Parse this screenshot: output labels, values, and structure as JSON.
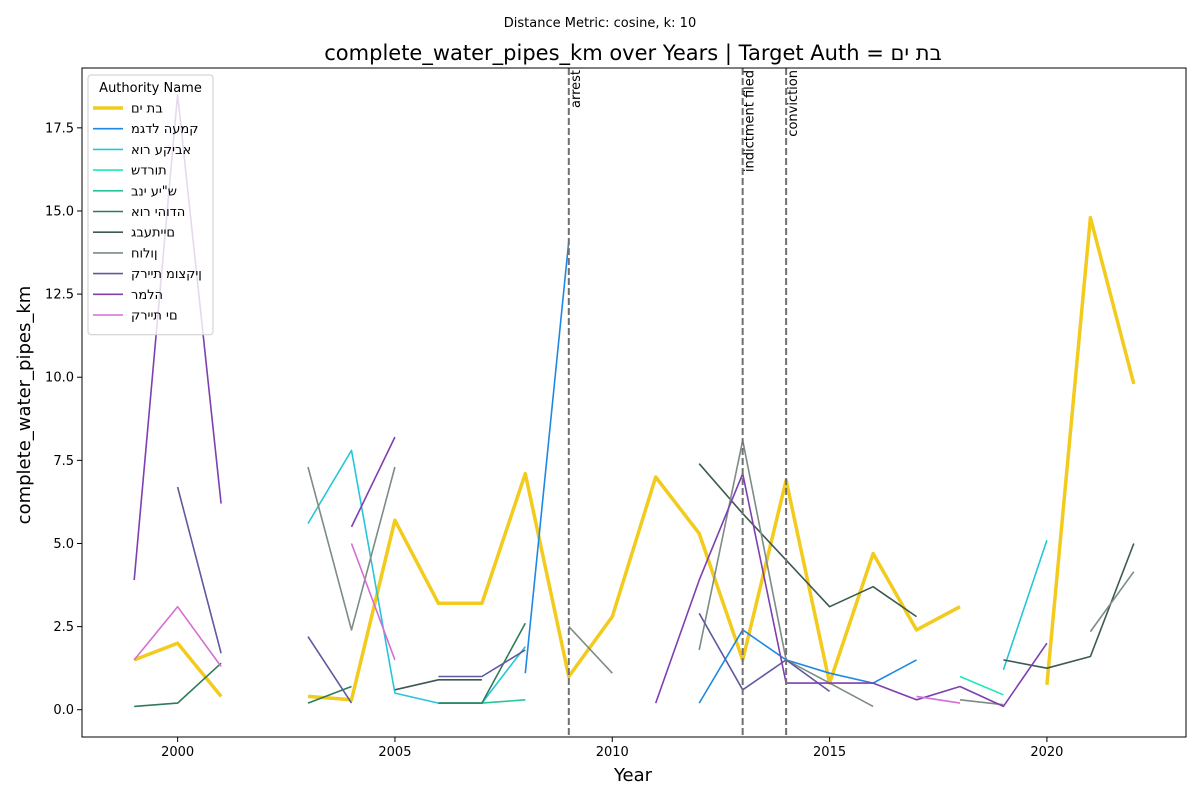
{
  "chart_data": {
    "type": "line",
    "suptitle": "Distance Metric: cosine, k: 10",
    "title": "complete_water_pipes_km over Years | Target Auth = בת ים",
    "xlabel": "Year",
    "ylabel": "complete_water_pipes_km",
    "xlim": [
      1997.8,
      2023.2
    ],
    "ylim": [
      -0.82,
      19.3
    ],
    "x_ticks": [
      2000,
      2005,
      2010,
      2015,
      2020
    ],
    "y_ticks": [
      0.0,
      2.5,
      5.0,
      7.5,
      10.0,
      12.5,
      15.0,
      17.5
    ],
    "y_tick_labels": [
      "0.0",
      "2.5",
      "5.0",
      "7.5",
      "10.0",
      "12.5",
      "15.0",
      "17.5"
    ],
    "grid": false,
    "legend": {
      "title": "Authority Name",
      "placement": "top-left"
    },
    "vlines": [
      {
        "x": 2009,
        "label": "arrest"
      },
      {
        "x": 2013,
        "label": "indictment filed"
      },
      {
        "x": 2014,
        "label": "conviction"
      }
    ],
    "series": [
      {
        "name": "בת ים",
        "color": "#f2cb1d",
        "width": 3.5,
        "points": [
          [
            1999,
            1.5
          ],
          [
            2000,
            2.0
          ],
          [
            2001,
            0.4
          ],
          null,
          [
            2003,
            0.4
          ],
          [
            2004,
            0.3
          ],
          [
            2005,
            5.7
          ],
          [
            2006,
            3.2
          ],
          [
            2007,
            3.2
          ],
          [
            2008,
            7.1
          ],
          [
            2009,
            1.0
          ],
          [
            2010,
            2.8
          ],
          [
            2011,
            7.0
          ],
          [
            2012,
            5.3
          ],
          [
            2013,
            1.5
          ],
          [
            2014,
            6.9
          ],
          [
            2015,
            0.8
          ],
          [
            2016,
            4.7
          ],
          [
            2017,
            2.4
          ],
          [
            2018,
            3.1
          ],
          null,
          [
            2020,
            0.75
          ],
          [
            2021,
            14.8
          ],
          [
            2022,
            9.8
          ]
        ]
      },
      {
        "name": "קמעה לדגמ",
        "color": "#1e88e5",
        "width": 1.6,
        "points": [
          [
            2008,
            1.1
          ],
          [
            2009,
            14.1
          ],
          null,
          [
            2012,
            0.2
          ],
          [
            2013,
            2.4
          ],
          [
            2014,
            1.5
          ],
          [
            2015,
            1.1
          ],
          [
            2016,
            0.8
          ],
          [
            2017,
            1.5
          ]
        ]
      },
      {
        "name": "אביקע רוא",
        "color": "#26c6da",
        "width": 1.6,
        "points": [
          [
            2003,
            5.6
          ],
          [
            2004,
            7.8
          ],
          [
            2005,
            0.5
          ],
          [
            2006,
            0.2
          ],
          [
            2007,
            0.2
          ],
          [
            2008,
            1.9
          ],
          null,
          [
            2019,
            1.2
          ],
          [
            2020,
            5.1
          ]
        ]
      },
      {
        "name": "תורדש",
        "color": "#1de9b6",
        "width": 1.6,
        "points": [
          [
            2018,
            1.0
          ],
          [
            2019,
            0.45
          ]
        ]
      },
      {
        "name": "ש\"יע ינב",
        "color": "#26c69a",
        "width": 1.6,
        "points": [
          [
            2007,
            0.2
          ],
          [
            2008,
            0.3
          ]
        ]
      },
      {
        "name": "הדוהי רוא",
        "color": "#2e7d5a",
        "width": 1.6,
        "points": [
          [
            1999,
            0.1
          ],
          [
            2000,
            0.2
          ],
          [
            2001,
            1.4
          ],
          null,
          [
            2003,
            0.2
          ],
          [
            2004,
            0.7
          ],
          null,
          [
            2006,
            0.2
          ],
          [
            2007,
            0.2
          ],
          [
            2008,
            2.6
          ]
        ]
      },
      {
        "name": "םייתעבג",
        "color": "#3d5a50",
        "width": 1.6,
        "points": [
          [
            2005,
            0.6
          ],
          [
            2006,
            0.9
          ],
          [
            2007,
            0.9
          ],
          null,
          [
            2012,
            7.4
          ],
          [
            2013,
            5.9
          ],
          [
            2014,
            4.5
          ],
          [
            2015,
            3.1
          ],
          [
            2016,
            3.7
          ],
          [
            2017,
            2.8
          ],
          null,
          [
            2019,
            1.5
          ],
          [
            2020,
            1.25
          ],
          [
            2021,
            1.6
          ],
          [
            2022,
            5.0
          ]
        ]
      },
      {
        "name": "ןולוח",
        "color": "#7d8c85",
        "width": 1.6,
        "points": [
          [
            2003,
            7.3
          ],
          [
            2004,
            2.4
          ],
          [
            2005,
            7.3
          ],
          null,
          [
            2009,
            2.5
          ],
          [
            2010,
            1.1
          ],
          null,
          [
            2012,
            1.8
          ],
          [
            2013,
            8.1
          ],
          [
            2014,
            1.5
          ],
          [
            2015,
            0.8
          ],
          [
            2016,
            0.1
          ],
          null,
          [
            2018,
            0.3
          ],
          [
            2019,
            0.15
          ],
          null,
          [
            2021,
            2.35
          ],
          [
            2022,
            4.15
          ]
        ]
      },
      {
        "name": "ןיקצומ תיירק",
        "color": "#5e5a9e",
        "width": 1.6,
        "points": [
          [
            2000,
            6.7
          ],
          [
            2001,
            1.7
          ],
          null,
          [
            2003,
            2.2
          ],
          [
            2004,
            0.2
          ],
          null,
          [
            2006,
            1.0
          ],
          [
            2007,
            1.0
          ],
          [
            2008,
            1.8
          ],
          null,
          [
            2012,
            2.9
          ],
          [
            2013,
            0.6
          ],
          [
            2014,
            1.5
          ],
          [
            2015,
            0.55
          ]
        ]
      },
      {
        "name": "הלמר",
        "color": "#7e3fb0",
        "width": 1.6,
        "points": [
          [
            1999,
            3.9
          ],
          [
            2000,
            18.5
          ],
          [
            2001,
            6.2
          ],
          null,
          [
            2004,
            5.5
          ],
          [
            2005,
            8.2
          ],
          null,
          [
            2011,
            0.2
          ],
          [
            2012,
            3.9
          ],
          [
            2013,
            7.1
          ],
          [
            2014,
            0.8
          ],
          [
            2015,
            0.8
          ],
          [
            2016,
            0.8
          ],
          [
            2017,
            0.3
          ],
          [
            2018,
            0.7
          ],
          [
            2019,
            0.1
          ],
          [
            2020,
            2.0
          ]
        ]
      },
      {
        "name": "םי תיירק",
        "color": "#d46ed4",
        "width": 1.6,
        "points": [
          [
            1999,
            1.5
          ],
          [
            2000,
            3.1
          ],
          [
            2001,
            1.3
          ],
          null,
          [
            2004,
            5.0
          ],
          [
            2005,
            1.5
          ],
          null,
          [
            2017,
            0.4
          ],
          [
            2018,
            0.2
          ]
        ]
      }
    ]
  }
}
